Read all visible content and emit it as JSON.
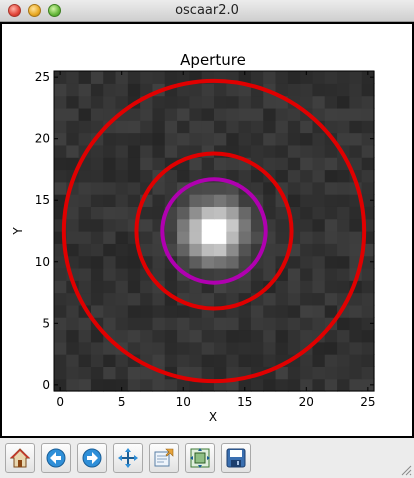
{
  "window": {
    "title": "oscaar2.0"
  },
  "plot": {
    "title": "Aperture",
    "xlabel": "X",
    "ylabel": "Y",
    "xticks": [
      "0",
      "5",
      "10",
      "15",
      "20",
      "25"
    ],
    "yticks": [
      "0",
      "5",
      "10",
      "15",
      "20",
      "25"
    ]
  },
  "chart_data": {
    "type": "heatmap",
    "title": "Aperture",
    "xlabel": "X",
    "ylabel": "Y",
    "xlim": [
      -0.5,
      25.5
    ],
    "ylim": [
      -0.5,
      25.5
    ],
    "colormap": "gray",
    "grid": false,
    "star_center": [
      12.5,
      12.5
    ],
    "circles": [
      {
        "center": [
          12.5,
          12.5
        ],
        "radius": 4.2,
        "color": "#b000b0"
      },
      {
        "center": [
          12.5,
          12.5
        ],
        "radius": 6.3,
        "color": "#e00000"
      },
      {
        "center": [
          12.5,
          12.5
        ],
        "radius": 12.2,
        "color": "#e00000"
      }
    ]
  },
  "toolbar": {
    "buttons": [
      {
        "name": "home",
        "icon": "home-icon"
      },
      {
        "name": "back",
        "icon": "back-arrow-icon"
      },
      {
        "name": "forward",
        "icon": "forward-arrow-icon"
      },
      {
        "name": "pan",
        "icon": "move-icon"
      },
      {
        "name": "zoom",
        "icon": "zoom-rect-icon"
      },
      {
        "name": "configure",
        "icon": "configure-subplots-icon"
      },
      {
        "name": "save",
        "icon": "save-icon"
      }
    ]
  }
}
